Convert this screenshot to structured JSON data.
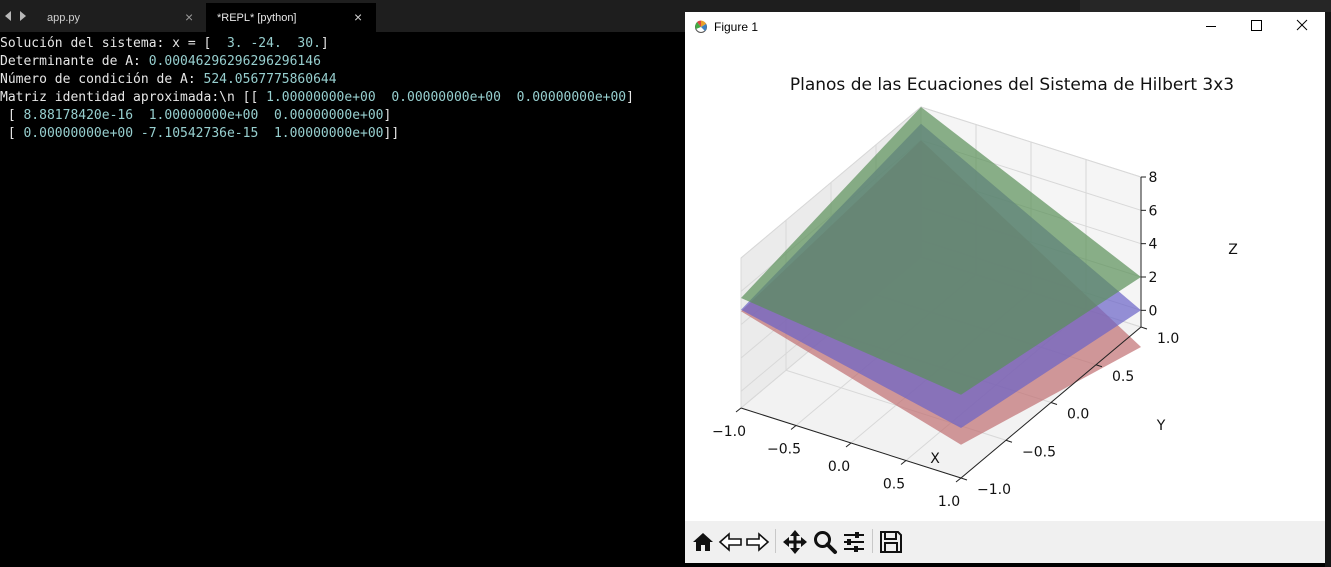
{
  "editor": {
    "tabs": [
      {
        "label": "app.py",
        "close": "×"
      },
      {
        "label": "*REPL* [python]",
        "close": "×"
      }
    ],
    "console": [
      [
        {
          "t": "Solución del sistema: x = [  "
        },
        {
          "t": "3. -24.  30.",
          "c": "num"
        },
        {
          "t": "]"
        }
      ],
      [
        {
          "t": "Determinante de A: "
        },
        {
          "t": "0.00046296296296296146",
          "c": "num"
        }
      ],
      [
        {
          "t": "Número de condición de A: "
        },
        {
          "t": "524.0567775860644",
          "c": "num"
        }
      ],
      [
        {
          "t": "Matriz identidad aproximada:\\n [[ "
        },
        {
          "t": "1.00000000e+00  0.00000000e+00  0.00000000e+00",
          "c": "num"
        },
        {
          "t": "]"
        }
      ],
      [
        {
          "t": " [ "
        },
        {
          "t": "8.88178420e-16  1.00000000e+00  0.00000000e+00",
          "c": "num"
        },
        {
          "t": "]"
        }
      ],
      [
        {
          "t": " [ "
        },
        {
          "t": "0.00000000e+00 -7.10542736e-15  1.00000000e+00",
          "c": "num"
        },
        {
          "t": "]]"
        }
      ]
    ]
  },
  "figure": {
    "window_title": "Figure 1",
    "toolbar": [
      "home-icon",
      "back-arrow-icon",
      "forward-arrow-icon",
      "pan-icon",
      "zoom-icon",
      "configure-subplots-icon",
      "save-icon"
    ]
  },
  "chart_data": {
    "type": "surface3d",
    "title": "Planos de las Ecuaciones del Sistema de Hilbert 3x3",
    "xlabel": "X",
    "ylabel": "Y",
    "zlabel": "Z",
    "x_ticks": [
      -1.0,
      -0.5,
      0.0,
      0.5,
      1.0
    ],
    "y_ticks": [
      -1.0,
      -0.5,
      0.0,
      0.5,
      1.0
    ],
    "z_ticks": [
      0,
      2,
      4,
      6,
      8
    ],
    "xlim": [
      -1,
      1
    ],
    "ylim": [
      -1,
      1
    ],
    "zlim": [
      -1,
      8
    ],
    "grid": true,
    "series": [
      {
        "corners_z": {
          "x-1_y-1": 4.8,
          "x1_y-1": 1.0,
          "x1_y1": -2.2,
          "x-1_y1": 6.0
        },
        "color": "#c06f72",
        "alpha": 0.7
      },
      {
        "corners_z": {
          "x-1_y-1": 4.9,
          "x1_y-1": 2.0,
          "x1_y1": 0.0,
          "x-1_y1": 7.0
        },
        "color": "#6a63c8",
        "alpha": 0.7
      },
      {
        "corners_z": {
          "x-1_y-1": 5.6,
          "x1_y-1": 4.0,
          "x1_y1": 2.0,
          "x-1_y1": 8.0
        },
        "color": "#5a9058",
        "alpha": 0.7
      }
    ]
  }
}
